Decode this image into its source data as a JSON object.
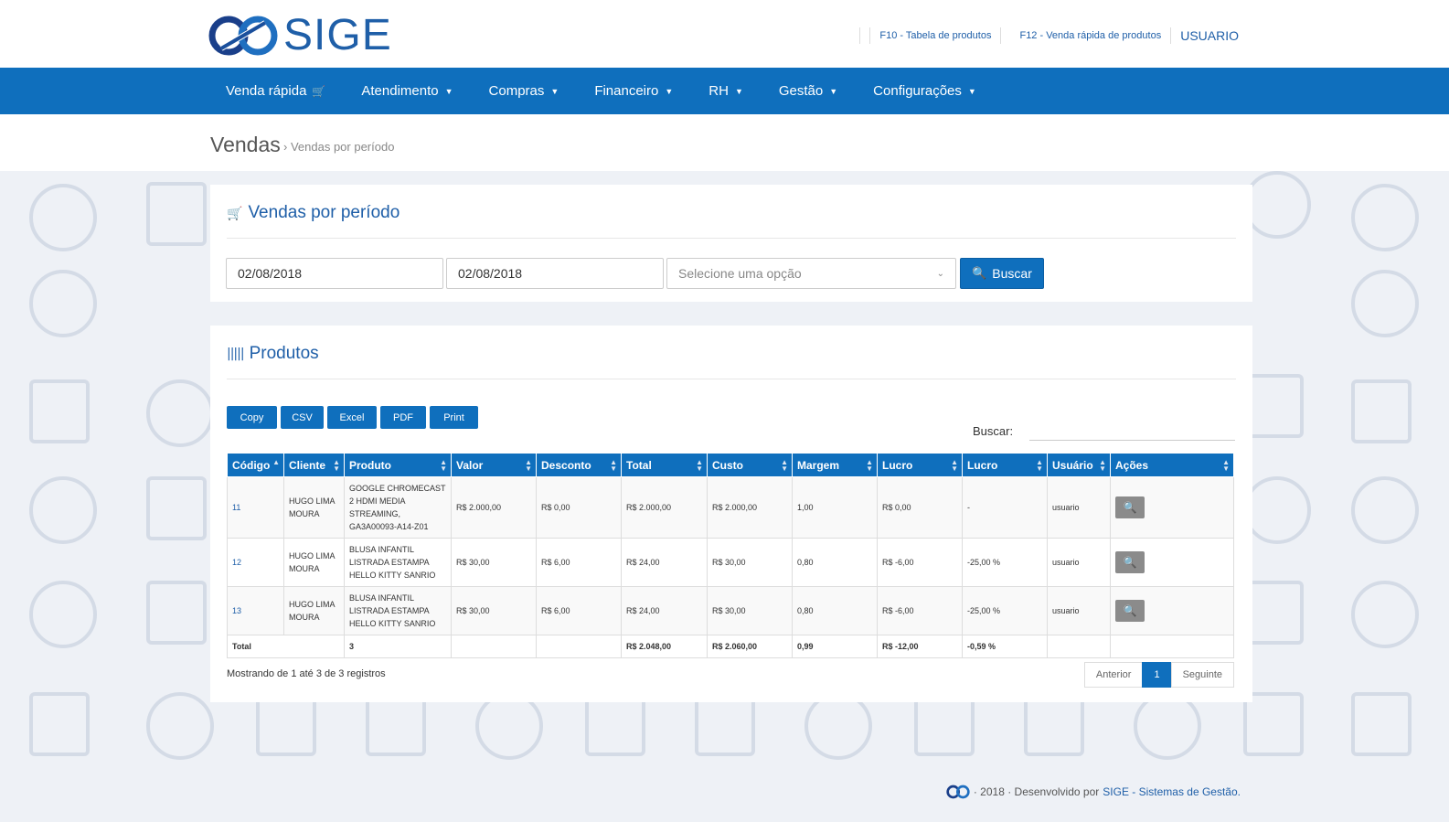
{
  "header": {
    "logo_text": "SIGE",
    "links": [
      "F10 - Tabela de produtos",
      "F12 - Venda rápida de produtos"
    ],
    "user": "USUARIO"
  },
  "nav": {
    "items": [
      {
        "label": "Venda rápida",
        "icon": "cart-icon"
      },
      {
        "label": "Atendimento",
        "icon": "chevron-down-icon"
      },
      {
        "label": "Compras",
        "icon": "chevron-down-icon"
      },
      {
        "label": "Financeiro",
        "icon": "chevron-down-icon"
      },
      {
        "label": "RH",
        "icon": "chevron-down-icon"
      },
      {
        "label": "Gestão",
        "icon": "chevron-down-icon"
      },
      {
        "label": "Configurações",
        "icon": "chevron-down-icon"
      }
    ]
  },
  "breadcrumb": {
    "main": "Vendas",
    "sub": "Vendas por período"
  },
  "filter": {
    "title": "Vendas por período",
    "date_start": "02/08/2018",
    "date_end": "02/08/2018",
    "select_placeholder": "Selecione uma opção",
    "search_button": "Buscar"
  },
  "products": {
    "title": "Produtos",
    "export_buttons": [
      "Copy",
      "CSV",
      "Excel",
      "PDF",
      "Print"
    ],
    "search_label": "Buscar:",
    "columns": [
      "Código",
      "Cliente",
      "Produto",
      "Valor",
      "Desconto",
      "Total",
      "Custo",
      "Margem",
      "Lucro",
      "Lucro",
      "Usuário",
      "Ações"
    ],
    "rows": [
      {
        "codigo": "11",
        "cliente": "HUGO LIMA MOURA",
        "produto": "GOOGLE CHROMECAST 2 HDMI MEDIA STREAMING, GA3A00093-A14-Z01",
        "valor": "R$ 2.000,00",
        "desconto": "R$ 0,00",
        "total": "R$ 2.000,00",
        "custo": "R$ 2.000,00",
        "margem": "1,00",
        "lucro": "R$ 0,00",
        "lucro_pct": "-",
        "usuario": "usuario"
      },
      {
        "codigo": "12",
        "cliente": "HUGO LIMA MOURA",
        "produto": "BLUSA INFANTIL LISTRADA ESTAMPA HELLO KITTY SANRIO",
        "valor": "R$ 30,00",
        "desconto": "R$ 6,00",
        "total": "R$ 24,00",
        "custo": "R$ 30,00",
        "margem": "0,80",
        "lucro": "R$ -6,00",
        "lucro_pct": "-25,00 %",
        "usuario": "usuario"
      },
      {
        "codigo": "13",
        "cliente": "HUGO LIMA MOURA",
        "produto": "BLUSA INFANTIL LISTRADA ESTAMPA HELLO KITTY SANRIO",
        "valor": "R$ 30,00",
        "desconto": "R$ 6,00",
        "total": "R$ 24,00",
        "custo": "R$ 30,00",
        "margem": "0,80",
        "lucro": "R$ -6,00",
        "lucro_pct": "-25,00 %",
        "usuario": "usuario"
      }
    ],
    "totals": {
      "label": "Total",
      "count": "3",
      "total": "R$ 2.048,00",
      "custo": "R$ 2.060,00",
      "margem": "0,99",
      "lucro": "R$ -12,00",
      "lucro_pct": "-0,59 %"
    },
    "info": "Mostrando de 1 até 3 de 3 registros",
    "pager": {
      "prev": "Anterior",
      "current": "1",
      "next": "Seguinte"
    }
  },
  "footer": {
    "year_text": "· 2018 · Desenvolvido por",
    "link": "SIGE - Sistemas de Gestão."
  },
  "colors": {
    "primary": "#0f6fbd",
    "text_link": "#1f5fa8"
  }
}
